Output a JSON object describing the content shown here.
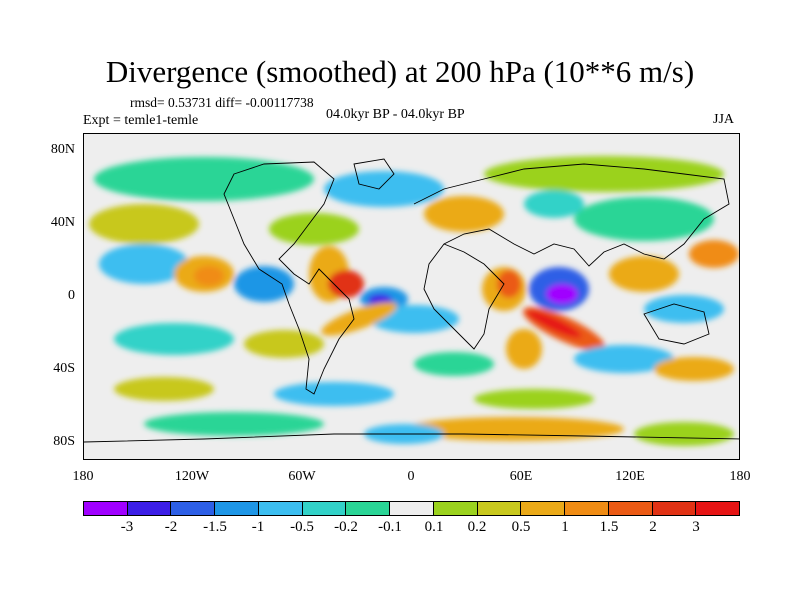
{
  "header": {
    "title": "Divergence (smoothed) at 200 hPa (10**6 m/s)",
    "stats": "rmsd= 0.53731 diff= -0.00117738",
    "experiment": "Expt = temle1-temle",
    "period": "04.0kyr BP - 04.0kyr BP",
    "season": "JJA"
  },
  "map": {
    "projection": "cylindrical equidistant",
    "lon_range": [
      -180,
      180
    ],
    "lat_range": [
      -90,
      90
    ],
    "y_labels": [
      "80N",
      "40N",
      "0",
      "40S",
      "80S"
    ],
    "x_labels": [
      "180",
      "120W",
      "60W",
      "0",
      "60E",
      "120E",
      "180"
    ],
    "features": [
      "coastlines",
      "filled contours of divergence"
    ]
  },
  "colorbar": {
    "labels": [
      "-3",
      "-2",
      "-1.5",
      "-1",
      "-0.5",
      "-0.2",
      "-0.1",
      "0.1",
      "0.2",
      "0.5",
      "1",
      "1.5",
      "2",
      "3"
    ],
    "colors": [
      "#a000ff",
      "#3c1ee6",
      "#2d5fe6",
      "#1e96e6",
      "#3cbef0",
      "#32d2c8",
      "#2ad596",
      "#eeeeee",
      "#9bd21e",
      "#c8c81e",
      "#ebaa19",
      "#f08c14",
      "#eb5a14",
      "#e13214",
      "#e61414"
    ]
  }
}
